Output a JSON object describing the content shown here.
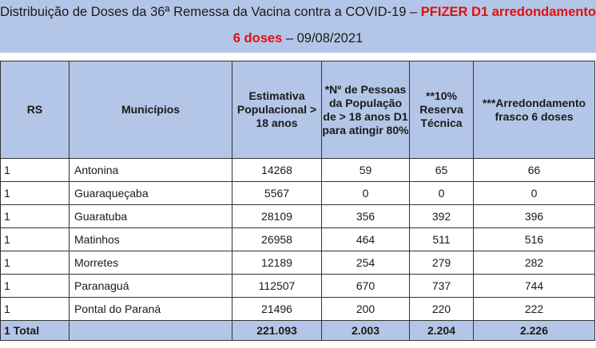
{
  "header": {
    "title_main": "Distribuição de Doses da 36ª Remessa da Vacina contra a COVID-19 – ",
    "title_highlight": "PFIZER D1 arredondamento",
    "title_line2_highlight": "6 doses",
    "title_line2_rest": " – 09/08/2021"
  },
  "table": {
    "columns": [
      "RS",
      "Municípios",
      "Estimativa Populacional > 18 anos",
      "*Nº de Pessoas da População de > 18 anos D1 para atingir 80%",
      "**10% Reserva Técnica",
      "***Arredondamento frasco 6 doses"
    ],
    "rows": [
      [
        "1",
        "Antonina",
        "14268",
        "59",
        "65",
        "66"
      ],
      [
        "1",
        "Guaraqueçaba",
        "5567",
        "0",
        "0",
        "0"
      ],
      [
        "1",
        "Guaratuba",
        "28109",
        "356",
        "392",
        "396"
      ],
      [
        "1",
        "Matinhos",
        "26958",
        "464",
        "511",
        "516"
      ],
      [
        "1",
        "Morretes",
        "12189",
        "254",
        "279",
        "282"
      ],
      [
        "1",
        "Paranaguá",
        "112507",
        "670",
        "737",
        "744"
      ],
      [
        "1",
        "Pontal do Paraná",
        "21496",
        "200",
        "220",
        "222"
      ]
    ],
    "total": [
      "1 Total",
      "",
      "221.093",
      "2.003",
      "2.204",
      "2.226"
    ]
  }
}
